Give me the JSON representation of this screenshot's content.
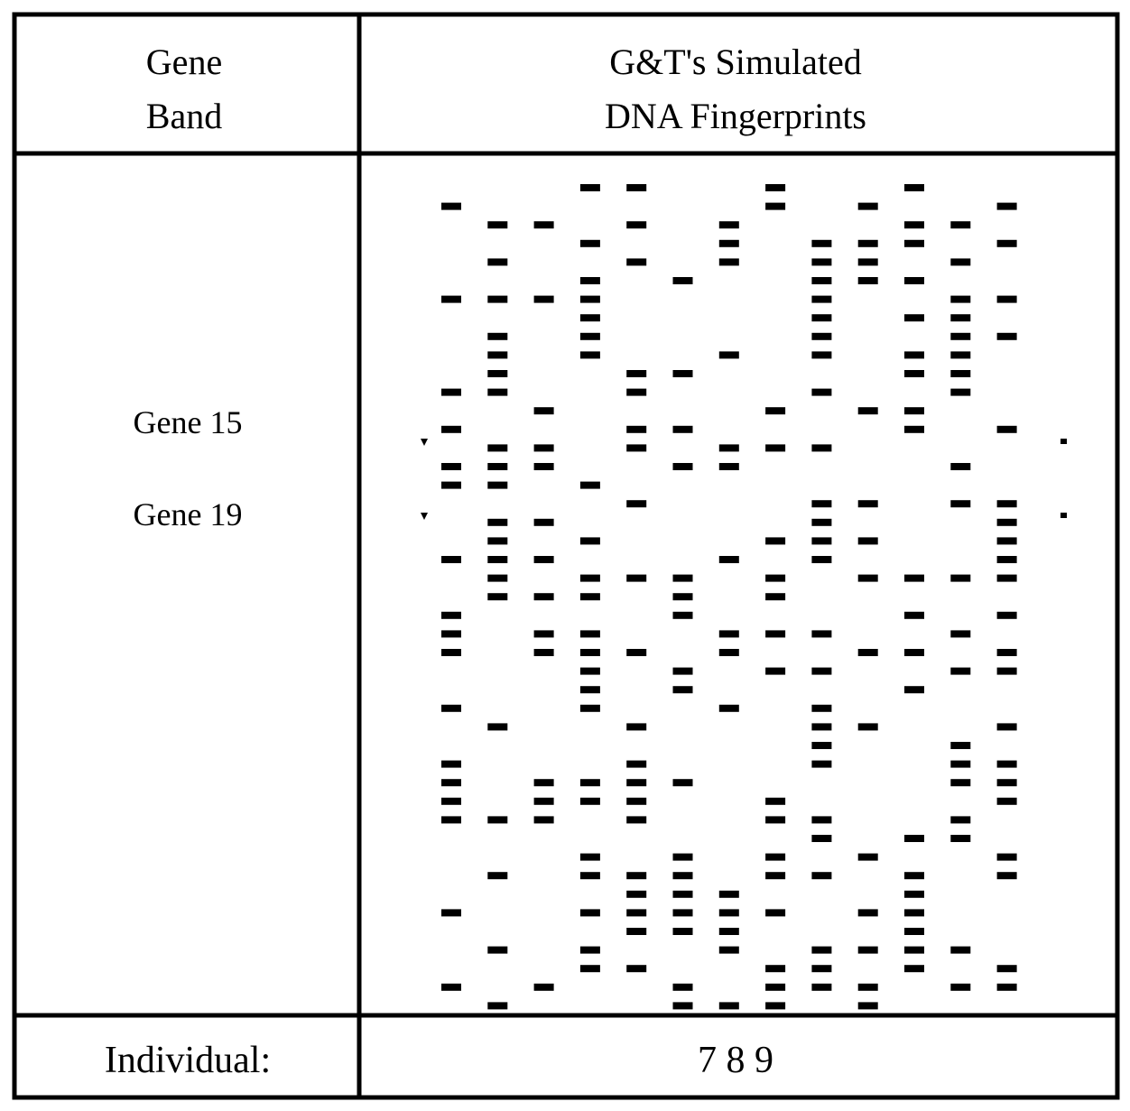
{
  "header": {
    "gene_band": [
      "Gene",
      "Band"
    ],
    "fingerprints": [
      "G&T's Simulated",
      "DNA Fingerprints"
    ]
  },
  "genes": [
    "Gene 15",
    "Gene 19"
  ],
  "footer": {
    "label": "Individual:",
    "individuals": "7 8 9"
  }
}
